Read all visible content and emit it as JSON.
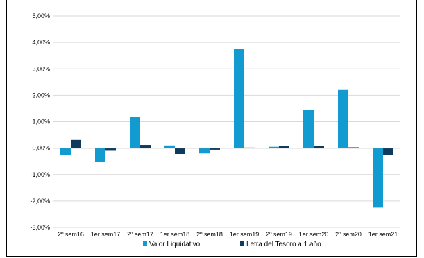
{
  "chart_data": {
    "type": "bar",
    "title": "",
    "xlabel": "",
    "ylabel": "",
    "categories": [
      "2º sem16",
      "1er sem17",
      "2º sem17",
      "1er sem18",
      "2º sem18",
      "1er sem19",
      "2º sem19",
      "1er sem20",
      "2º sem20",
      "1er sem21"
    ],
    "series": [
      {
        "name": "Valor Liquidativo",
        "color": "#129bd0",
        "values": [
          -0.25,
          -0.52,
          1.18,
          0.1,
          -0.2,
          3.75,
          0.05,
          1.45,
          2.2,
          -2.25
        ]
      },
      {
        "name": "Letra del Tesoro a 1 año",
        "color": "#0e3a5e",
        "values": [
          0.31,
          -0.1,
          0.12,
          -0.22,
          -0.06,
          0.02,
          0.07,
          0.09,
          0.03,
          -0.26
        ]
      }
    ],
    "ylim": [
      -3.0,
      5.0
    ],
    "yticks": [
      -3,
      -2,
      -1,
      0,
      1,
      2,
      3,
      4,
      5
    ],
    "ytick_labels": [
      "-3,00%",
      "-2,00%",
      "-1,00%",
      "0,00%",
      "1,00%",
      "2,00%",
      "3,00%",
      "4,00%",
      "5,00%"
    ],
    "grid": true,
    "legend_position": "bottom"
  }
}
